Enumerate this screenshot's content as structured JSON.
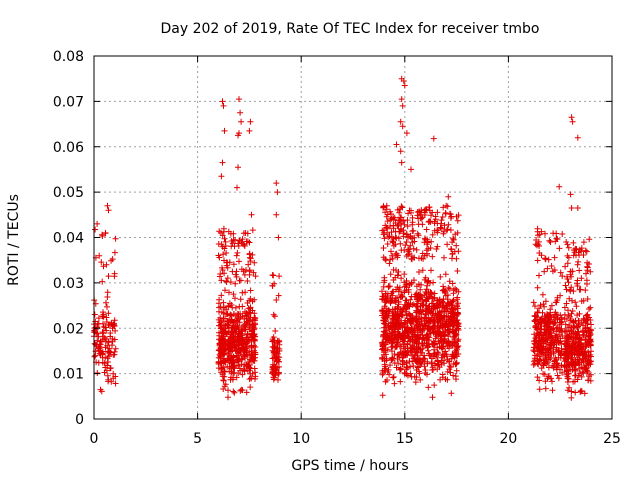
{
  "chart_data": {
    "type": "scatter",
    "title": "Day 202 of 2019, Rate Of TEC Index for receiver tmbo",
    "xlabel": "GPS time / hours",
    "ylabel": "ROTI / TECUs",
    "xlim": [
      0,
      25
    ],
    "ylim": [
      0,
      0.08
    ],
    "xticks": [
      "0",
      "5",
      "10",
      "15",
      "20",
      "25"
    ],
    "yticks": [
      "0",
      "0.01",
      "0.02",
      "0.03",
      "0.04",
      "0.05",
      "0.06",
      "0.07",
      "0.08"
    ],
    "grid": true,
    "marker": "+",
    "color": "#e00000",
    "clusters": [
      {
        "x_range": [
          0.0,
          1.05
        ],
        "density": 140,
        "y_typical": [
          0.004,
          0.03
        ]
      },
      {
        "x_range": [
          6.0,
          7.8
        ],
        "density": 620,
        "y_typical": [
          0.003,
          0.03
        ]
      },
      {
        "x_range": [
          8.6,
          8.95
        ],
        "density": 90,
        "y_typical": [
          0.005,
          0.02
        ]
      },
      {
        "x_range": [
          13.9,
          17.6
        ],
        "density": 1300,
        "y_typical": [
          0.004,
          0.035
        ]
      },
      {
        "x_range": [
          21.2,
          22.6
        ],
        "density": 350,
        "y_typical": [
          0.004,
          0.03
        ]
      },
      {
        "x_range": [
          22.7,
          24.0
        ],
        "density": 420,
        "y_typical": [
          0.003,
          0.028
        ]
      }
    ],
    "notable_points": [
      [
        0.15,
        0.043
      ],
      [
        0.25,
        0.036
      ],
      [
        0.65,
        0.047
      ],
      [
        0.7,
        0.046
      ],
      [
        0.6,
        0.034
      ],
      [
        6.2,
        0.07
      ],
      [
        6.25,
        0.069
      ],
      [
        6.3,
        0.0635
      ],
      [
        6.2,
        0.0565
      ],
      [
        6.15,
        0.0535
      ],
      [
        7.0,
        0.0705
      ],
      [
        7.05,
        0.0675
      ],
      [
        7.1,
        0.0655
      ],
      [
        6.95,
        0.0625
      ],
      [
        7.0,
        0.063
      ],
      [
        7.55,
        0.0655
      ],
      [
        7.5,
        0.0635
      ],
      [
        6.95,
        0.0555
      ],
      [
        6.9,
        0.051
      ],
      [
        7.6,
        0.045
      ],
      [
        8.8,
        0.052
      ],
      [
        8.85,
        0.05
      ],
      [
        8.8,
        0.045
      ],
      [
        8.9,
        0.04
      ],
      [
        14.85,
        0.075
      ],
      [
        14.95,
        0.0745
      ],
      [
        15.0,
        0.0735
      ],
      [
        14.85,
        0.0705
      ],
      [
        14.9,
        0.069
      ],
      [
        14.8,
        0.0655
      ],
      [
        14.9,
        0.0645
      ],
      [
        15.1,
        0.063
      ],
      [
        14.6,
        0.0605
      ],
      [
        14.8,
        0.059
      ],
      [
        14.85,
        0.0565
      ],
      [
        15.3,
        0.055
      ],
      [
        16.4,
        0.0618
      ],
      [
        17.1,
        0.049
      ],
      [
        17.0,
        0.047
      ],
      [
        23.05,
        0.0665
      ],
      [
        23.1,
        0.0655
      ],
      [
        23.35,
        0.062
      ],
      [
        22.45,
        0.0512
      ],
      [
        23.0,
        0.0495
      ],
      [
        23.05,
        0.0465
      ],
      [
        23.35,
        0.0465
      ]
    ]
  }
}
